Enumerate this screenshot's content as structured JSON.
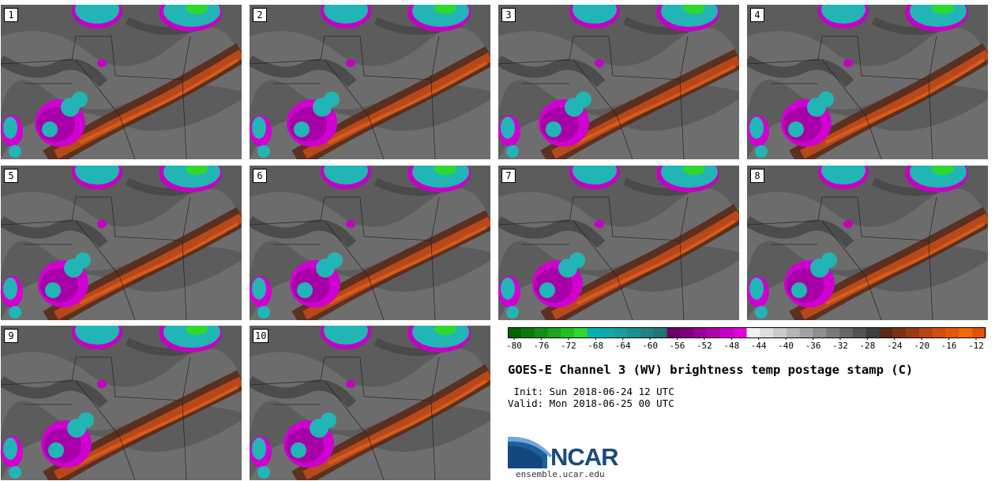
{
  "panels": [
    {
      "label": "1"
    },
    {
      "label": "2"
    },
    {
      "label": "3"
    },
    {
      "label": "4"
    },
    {
      "label": "5"
    },
    {
      "label": "6"
    },
    {
      "label": "7"
    },
    {
      "label": "8"
    },
    {
      "label": "9"
    },
    {
      "label": "10"
    }
  ],
  "colorbar": {
    "ticks": [
      "-80",
      "-76",
      "-72",
      "-68",
      "-64",
      "-60",
      "-56",
      "-52",
      "-48",
      "-44",
      "-40",
      "-36",
      "-32",
      "-28",
      "-24",
      "-20",
      "-16",
      "-12"
    ],
    "colors": [
      "#006400",
      "#0a7a0a",
      "#128f12",
      "#1aa61a",
      "#22c022",
      "#2ed82e",
      "#00b3b3",
      "#10a8a8",
      "#1a9e9e",
      "#1c9090",
      "#1e8282",
      "#207474",
      "#6a006a",
      "#7e007e",
      "#960096",
      "#ae00ae",
      "#c800c8",
      "#e000e0",
      "#f2f2f2",
      "#dedede",
      "#cacaca",
      "#b6b6b6",
      "#a2a2a2",
      "#8e8e8e",
      "#7a7a7a",
      "#666666",
      "#525252",
      "#3e3e3e",
      "#5a2a1a",
      "#7a3215",
      "#9a3a12",
      "#ba4410",
      "#d24e0c",
      "#e25a08",
      "#ef6a0a",
      "#e2500a"
    ]
  },
  "title": "GOES-E Channel 3 (WV) brightness temp postage stamp (C)",
  "init": " Init: Sun 2018-06-24 12 UTC",
  "valid": "Valid: Mon 2018-06-25 00 UTC",
  "logo_text": "NCAR",
  "site": "ensemble.ucar.edu",
  "colors": {
    "background_gray": "#5d5d5d",
    "dry_orange": "#c8501e",
    "cold_cyan": "#22b5b5",
    "cold_magenta": "#c400c4"
  }
}
